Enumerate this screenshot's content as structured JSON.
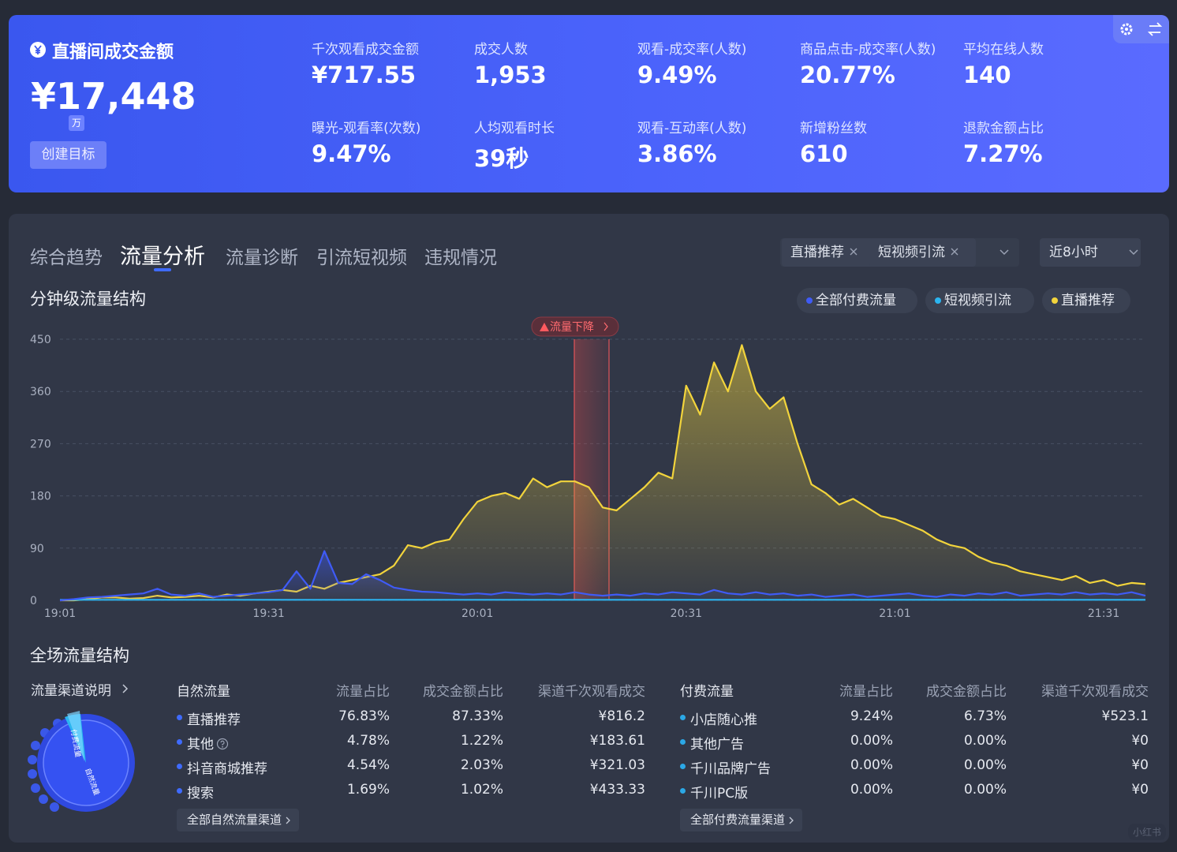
{
  "header": {
    "title": "直播间成交金额",
    "amount": "¥17,448",
    "unit": "万",
    "button": "创建目标",
    "metrics": [
      {
        "label": "千次观看成交金额",
        "value": "¥717.55"
      },
      {
        "label": "成交人数",
        "value": "1,953"
      },
      {
        "label": "观看-成交率(人数)",
        "value": "9.49%"
      },
      {
        "label": "商品点击-成交率(人数)",
        "value": "20.77%"
      },
      {
        "label": "平均在线人数",
        "value": "140"
      },
      {
        "label": "曝光-观看率(次数)",
        "value": "9.47%"
      },
      {
        "label": "人均观看时长",
        "value": "39秒"
      },
      {
        "label": "观看-互动率(人数)",
        "value": "3.86%"
      },
      {
        "label": "新增粉丝数",
        "value": "610"
      },
      {
        "label": "退款金额占比",
        "value": "7.27%"
      }
    ]
  },
  "tabs": [
    {
      "label": "综合趋势",
      "active": false
    },
    {
      "label": "流量分析",
      "active": true
    },
    {
      "label": "流量诊断",
      "active": false
    },
    {
      "label": "引流短视频",
      "active": false
    },
    {
      "label": "违规情况",
      "active": false
    }
  ],
  "filters": {
    "tags": [
      "直播推荐",
      "短视频引流"
    ],
    "range": "近8小时"
  },
  "chart_data": {
    "type": "line",
    "title": "分钟级流量结构",
    "annotation": "流量下降",
    "categories": [
      "19:01",
      null,
      null,
      null,
      null,
      null,
      null,
      null,
      null,
      null,
      null,
      null,
      null,
      null,
      null,
      "19:31",
      null,
      null,
      null,
      null,
      null,
      null,
      null,
      null,
      null,
      null,
      null,
      null,
      null,
      null,
      "20:01",
      null,
      null,
      null,
      null,
      null,
      null,
      null,
      null,
      null,
      null,
      null,
      null,
      null,
      null,
      "20:31",
      null,
      null,
      null,
      null,
      null,
      null,
      null,
      null,
      null,
      null,
      null,
      null,
      null,
      null,
      "21:01",
      null,
      null,
      null,
      null,
      null,
      null,
      null,
      null,
      null,
      null,
      null,
      null,
      null,
      null,
      "21:31",
      null,
      null,
      null
    ],
    "series": [
      {
        "name": "全部付费流量",
        "color": "#3f5bf6",
        "area": true,
        "values": [
          0,
          2,
          5,
          6,
          8,
          10,
          12,
          20,
          10,
          8,
          12,
          6,
          8,
          10,
          12,
          14,
          18,
          50,
          20,
          85,
          30,
          28,
          45,
          35,
          22,
          18,
          15,
          14,
          12,
          10,
          12,
          10,
          14,
          12,
          10,
          12,
          10,
          14,
          10,
          8,
          10,
          8,
          12,
          10,
          14,
          12,
          10,
          18,
          12,
          10,
          14,
          10,
          12,
          8,
          10,
          6,
          8,
          10,
          6,
          8,
          10,
          12,
          8,
          6,
          10,
          8,
          12,
          10,
          14,
          8,
          10,
          12,
          10,
          14,
          10,
          12,
          10,
          14,
          8
        ]
      },
      {
        "name": "短视频引流",
        "color": "#2bb5f0",
        "area": false,
        "values": [
          1,
          1,
          1,
          1,
          1,
          1,
          1,
          1,
          1,
          1,
          1,
          1,
          1,
          1,
          1,
          1,
          1,
          1,
          1,
          1,
          1,
          1,
          1,
          1,
          1,
          1,
          1,
          1,
          1,
          1,
          1,
          1,
          1,
          1,
          1,
          1,
          1,
          1,
          1,
          1,
          1,
          1,
          1,
          1,
          1,
          1,
          1,
          1,
          1,
          1,
          1,
          1,
          1,
          1,
          1,
          1,
          1,
          1,
          1,
          1,
          1,
          1,
          1,
          1,
          1,
          1,
          1,
          1,
          1,
          1,
          1,
          1,
          1,
          1,
          1,
          1,
          1,
          1,
          1
        ]
      },
      {
        "name": "直播推荐",
        "color": "#f2d43c",
        "area": true,
        "values": [
          0,
          0,
          2,
          5,
          5,
          3,
          4,
          8,
          5,
          6,
          8,
          5,
          10,
          8,
          12,
          15,
          18,
          15,
          25,
          20,
          30,
          35,
          40,
          45,
          60,
          95,
          90,
          100,
          105,
          140,
          170,
          180,
          185,
          175,
          210,
          195,
          205,
          205,
          195,
          160,
          155,
          175,
          195,
          220,
          210,
          370,
          320,
          410,
          360,
          440,
          360,
          330,
          350,
          270,
          200,
          185,
          165,
          175,
          160,
          145,
          140,
          130,
          120,
          105,
          95,
          90,
          75,
          65,
          60,
          50,
          45,
          40,
          35,
          42,
          30,
          35,
          25,
          30,
          28
        ]
      }
    ],
    "ylim": [
      0,
      450
    ],
    "yticks": [
      0,
      90,
      180,
      270,
      360,
      450
    ],
    "grid": true
  },
  "structure": {
    "title": "全场流量结构",
    "channel_note": "流量渠道说明",
    "donut_labels": [
      "付费流量",
      "自然流量"
    ],
    "natural": {
      "columns": [
        "自然流量",
        "流量占比",
        "成交金额占比",
        "渠道千次观看成交"
      ],
      "rows": [
        [
          "直播推荐",
          "76.83%",
          "87.33%",
          "¥816.2"
        ],
        [
          "其他",
          "4.78%",
          "1.22%",
          "¥183.61"
        ],
        [
          "抖音商城推荐",
          "4.54%",
          "2.03%",
          "¥321.03"
        ],
        [
          "搜索",
          "1.69%",
          "1.02%",
          "¥433.33"
        ]
      ],
      "link": "全部自然流量渠道"
    },
    "paid": {
      "columns": [
        "付费流量",
        "流量占比",
        "成交金额占比",
        "渠道千次观看成交"
      ],
      "rows": [
        [
          "小店随心推",
          "9.24%",
          "6.73%",
          "¥523.1"
        ],
        [
          "其他广告",
          "0.00%",
          "0.00%",
          "¥0"
        ],
        [
          "千川品牌广告",
          "0.00%",
          "0.00%",
          "¥0"
        ],
        [
          "千川PC版",
          "0.00%",
          "0.00%",
          "¥0"
        ]
      ],
      "link": "全部付费流量渠道"
    }
  },
  "watermark": "小红书"
}
